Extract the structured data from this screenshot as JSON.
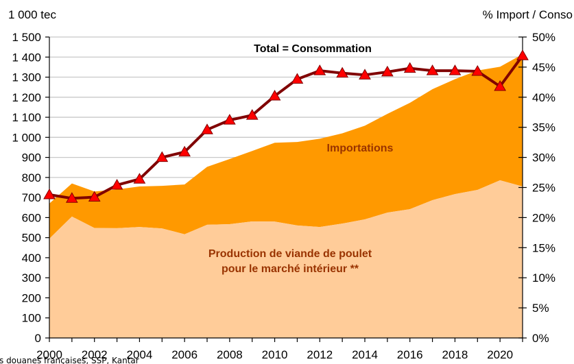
{
  "chart_data": {
    "type": "area",
    "title": "",
    "x": [
      2000,
      2001,
      2002,
      2003,
      2004,
      2005,
      2006,
      2007,
      2008,
      2009,
      2010,
      2011,
      2012,
      2013,
      2014,
      2015,
      2016,
      2017,
      2018,
      2019,
      2020,
      2021
    ],
    "xlim": [
      2000,
      2021
    ],
    "x_ticks": [
      "2000",
      "2002",
      "2004",
      "2006",
      "2008",
      "2010",
      "2012",
      "2014",
      "2016",
      "2018",
      "2020"
    ],
    "ylabel_left": "1 000 tec",
    "ylabel_right": "% Import / Conso",
    "ylim_left": [
      0,
      1500
    ],
    "ylim_right": [
      0,
      50
    ],
    "y_ticks_left": [
      "0",
      "100",
      "200",
      "300",
      "400",
      "500",
      "600",
      "700",
      "800",
      "900",
      "1 000",
      "1 100",
      "1 200",
      "1 300",
      "1 400",
      "1 500"
    ],
    "y_ticks_right": [
      "0%",
      "5%",
      "10%",
      "15%",
      "20%",
      "25%",
      "30%",
      "35%",
      "40%",
      "45%",
      "50%"
    ],
    "grid": true,
    "stacked": true,
    "series": [
      {
        "name": "Production de viande de poulet pour le marché intérieur **",
        "type": "area",
        "axis": "left",
        "color": "#FFCC99",
        "values": [
          495,
          605,
          548,
          547,
          553,
          546,
          517,
          564,
          567,
          581,
          580,
          561,
          553,
          570,
          591,
          625,
          642,
          687,
          717,
          738,
          786,
          755
        ]
      },
      {
        "name": "Importations",
        "type": "area",
        "axis": "left",
        "color": "#FF9900",
        "values": [
          175,
          165,
          182,
          193,
          202,
          212,
          248,
          289,
          325,
          351,
          393,
          416,
          440,
          450,
          467,
          492,
          530,
          553,
          573,
          595,
          566,
          659
        ]
      },
      {
        "name": "% Import / Conso",
        "type": "line",
        "axis": "right",
        "color": "#800000",
        "marker": "triangle",
        "marker_color": "#FF0000",
        "values": [
          23.8,
          23.2,
          23.4,
          25.4,
          26.4,
          30.0,
          30.9,
          34.6,
          36.2,
          37.0,
          40.2,
          43.0,
          44.4,
          44.0,
          43.7,
          44.2,
          44.8,
          44.4,
          44.4,
          44.3,
          41.8,
          46.9
        ]
      }
    ],
    "annotations": {
      "total": "Total = Consommation",
      "imports": "Importations",
      "production_line1": "Production de viande de poulet",
      "production_line2": "pour le marché intérieur **"
    },
    "annotation_colors": {
      "series_text": "#993300"
    },
    "source": "s douanes françaises, SSP, Kantar"
  }
}
